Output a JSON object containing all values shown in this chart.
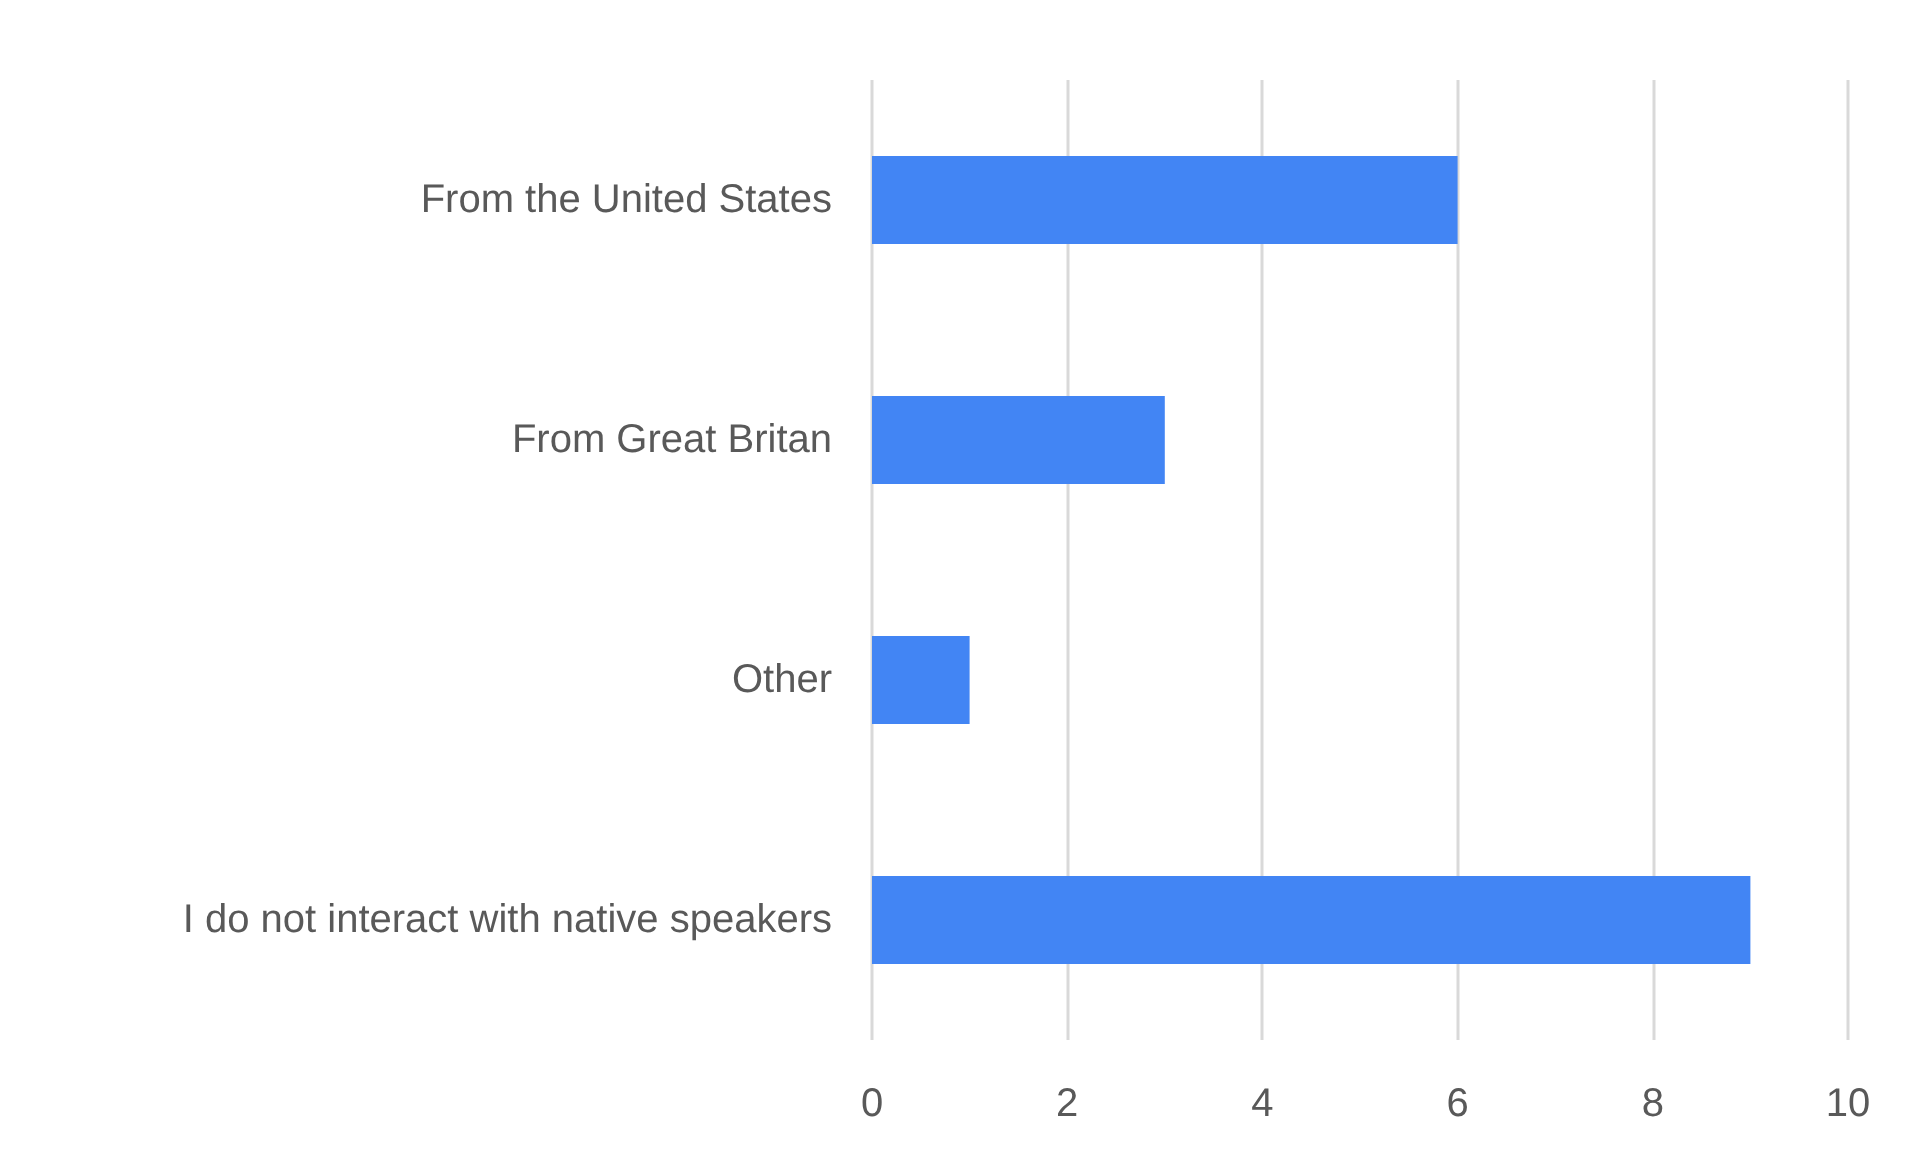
{
  "chart_data": {
    "type": "bar",
    "orientation": "horizontal",
    "categories": [
      "From the United States",
      "From Great Britan",
      "Other",
      "I do not interact with native speakers"
    ],
    "values": [
      6,
      3,
      1,
      9
    ],
    "color": "#4285f4",
    "xlim": [
      0,
      10
    ],
    "xticks": [
      0,
      2,
      4,
      6,
      8,
      10
    ],
    "grid": "x"
  }
}
